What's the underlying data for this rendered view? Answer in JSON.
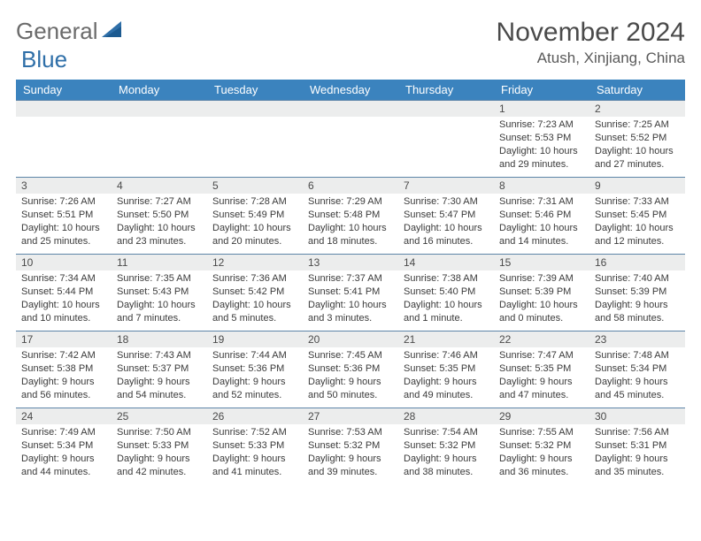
{
  "logo": {
    "text_left": "General",
    "text_right": "Blue",
    "sail_color": "#2f6fa8"
  },
  "title": "November 2024",
  "location": "Atush, Xinjiang, China",
  "colors": {
    "header_bg": "#3b83be",
    "row_border": "#5d85a8",
    "day_num_bg": "#eceded"
  },
  "day_headers": [
    "Sunday",
    "Monday",
    "Tuesday",
    "Wednesday",
    "Thursday",
    "Friday",
    "Saturday"
  ],
  "weeks": [
    [
      null,
      null,
      null,
      null,
      null,
      {
        "n": "1",
        "sunrise": "Sunrise: 7:23 AM",
        "sunset": "Sunset: 5:53 PM",
        "day1": "Daylight: 10 hours",
        "day2": "and 29 minutes."
      },
      {
        "n": "2",
        "sunrise": "Sunrise: 7:25 AM",
        "sunset": "Sunset: 5:52 PM",
        "day1": "Daylight: 10 hours",
        "day2": "and 27 minutes."
      }
    ],
    [
      {
        "n": "3",
        "sunrise": "Sunrise: 7:26 AM",
        "sunset": "Sunset: 5:51 PM",
        "day1": "Daylight: 10 hours",
        "day2": "and 25 minutes."
      },
      {
        "n": "4",
        "sunrise": "Sunrise: 7:27 AM",
        "sunset": "Sunset: 5:50 PM",
        "day1": "Daylight: 10 hours",
        "day2": "and 23 minutes."
      },
      {
        "n": "5",
        "sunrise": "Sunrise: 7:28 AM",
        "sunset": "Sunset: 5:49 PM",
        "day1": "Daylight: 10 hours",
        "day2": "and 20 minutes."
      },
      {
        "n": "6",
        "sunrise": "Sunrise: 7:29 AM",
        "sunset": "Sunset: 5:48 PM",
        "day1": "Daylight: 10 hours",
        "day2": "and 18 minutes."
      },
      {
        "n": "7",
        "sunrise": "Sunrise: 7:30 AM",
        "sunset": "Sunset: 5:47 PM",
        "day1": "Daylight: 10 hours",
        "day2": "and 16 minutes."
      },
      {
        "n": "8",
        "sunrise": "Sunrise: 7:31 AM",
        "sunset": "Sunset: 5:46 PM",
        "day1": "Daylight: 10 hours",
        "day2": "and 14 minutes."
      },
      {
        "n": "9",
        "sunrise": "Sunrise: 7:33 AM",
        "sunset": "Sunset: 5:45 PM",
        "day1": "Daylight: 10 hours",
        "day2": "and 12 minutes."
      }
    ],
    [
      {
        "n": "10",
        "sunrise": "Sunrise: 7:34 AM",
        "sunset": "Sunset: 5:44 PM",
        "day1": "Daylight: 10 hours",
        "day2": "and 10 minutes."
      },
      {
        "n": "11",
        "sunrise": "Sunrise: 7:35 AM",
        "sunset": "Sunset: 5:43 PM",
        "day1": "Daylight: 10 hours",
        "day2": "and 7 minutes."
      },
      {
        "n": "12",
        "sunrise": "Sunrise: 7:36 AM",
        "sunset": "Sunset: 5:42 PM",
        "day1": "Daylight: 10 hours",
        "day2": "and 5 minutes."
      },
      {
        "n": "13",
        "sunrise": "Sunrise: 7:37 AM",
        "sunset": "Sunset: 5:41 PM",
        "day1": "Daylight: 10 hours",
        "day2": "and 3 minutes."
      },
      {
        "n": "14",
        "sunrise": "Sunrise: 7:38 AM",
        "sunset": "Sunset: 5:40 PM",
        "day1": "Daylight: 10 hours",
        "day2": "and 1 minute."
      },
      {
        "n": "15",
        "sunrise": "Sunrise: 7:39 AM",
        "sunset": "Sunset: 5:39 PM",
        "day1": "Daylight: 10 hours",
        "day2": "and 0 minutes."
      },
      {
        "n": "16",
        "sunrise": "Sunrise: 7:40 AM",
        "sunset": "Sunset: 5:39 PM",
        "day1": "Daylight: 9 hours",
        "day2": "and 58 minutes."
      }
    ],
    [
      {
        "n": "17",
        "sunrise": "Sunrise: 7:42 AM",
        "sunset": "Sunset: 5:38 PM",
        "day1": "Daylight: 9 hours",
        "day2": "and 56 minutes."
      },
      {
        "n": "18",
        "sunrise": "Sunrise: 7:43 AM",
        "sunset": "Sunset: 5:37 PM",
        "day1": "Daylight: 9 hours",
        "day2": "and 54 minutes."
      },
      {
        "n": "19",
        "sunrise": "Sunrise: 7:44 AM",
        "sunset": "Sunset: 5:36 PM",
        "day1": "Daylight: 9 hours",
        "day2": "and 52 minutes."
      },
      {
        "n": "20",
        "sunrise": "Sunrise: 7:45 AM",
        "sunset": "Sunset: 5:36 PM",
        "day1": "Daylight: 9 hours",
        "day2": "and 50 minutes."
      },
      {
        "n": "21",
        "sunrise": "Sunrise: 7:46 AM",
        "sunset": "Sunset: 5:35 PM",
        "day1": "Daylight: 9 hours",
        "day2": "and 49 minutes."
      },
      {
        "n": "22",
        "sunrise": "Sunrise: 7:47 AM",
        "sunset": "Sunset: 5:35 PM",
        "day1": "Daylight: 9 hours",
        "day2": "and 47 minutes."
      },
      {
        "n": "23",
        "sunrise": "Sunrise: 7:48 AM",
        "sunset": "Sunset: 5:34 PM",
        "day1": "Daylight: 9 hours",
        "day2": "and 45 minutes."
      }
    ],
    [
      {
        "n": "24",
        "sunrise": "Sunrise: 7:49 AM",
        "sunset": "Sunset: 5:34 PM",
        "day1": "Daylight: 9 hours",
        "day2": "and 44 minutes."
      },
      {
        "n": "25",
        "sunrise": "Sunrise: 7:50 AM",
        "sunset": "Sunset: 5:33 PM",
        "day1": "Daylight: 9 hours",
        "day2": "and 42 minutes."
      },
      {
        "n": "26",
        "sunrise": "Sunrise: 7:52 AM",
        "sunset": "Sunset: 5:33 PM",
        "day1": "Daylight: 9 hours",
        "day2": "and 41 minutes."
      },
      {
        "n": "27",
        "sunrise": "Sunrise: 7:53 AM",
        "sunset": "Sunset: 5:32 PM",
        "day1": "Daylight: 9 hours",
        "day2": "and 39 minutes."
      },
      {
        "n": "28",
        "sunrise": "Sunrise: 7:54 AM",
        "sunset": "Sunset: 5:32 PM",
        "day1": "Daylight: 9 hours",
        "day2": "and 38 minutes."
      },
      {
        "n": "29",
        "sunrise": "Sunrise: 7:55 AM",
        "sunset": "Sunset: 5:32 PM",
        "day1": "Daylight: 9 hours",
        "day2": "and 36 minutes."
      },
      {
        "n": "30",
        "sunrise": "Sunrise: 7:56 AM",
        "sunset": "Sunset: 5:31 PM",
        "day1": "Daylight: 9 hours",
        "day2": "and 35 minutes."
      }
    ]
  ]
}
